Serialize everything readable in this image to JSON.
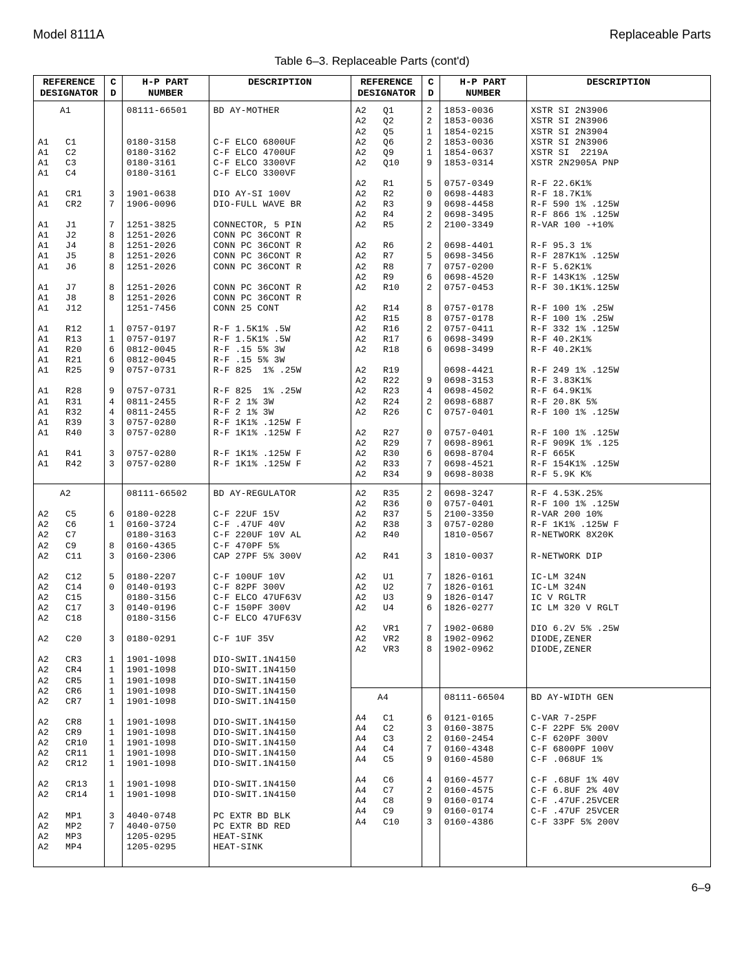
{
  "header": {
    "left": "Model 8111A",
    "right": "Replaceable Parts"
  },
  "caption": "Table 6–3. Replaceable Parts (cont'd)",
  "columns": [
    {
      "label_line1": "REFERENCE",
      "label_line2": "DESIGNATOR"
    },
    {
      "label_line1": "C",
      "label_line2": "D"
    },
    {
      "label_line1": "H-P PART",
      "label_line2": "NUMBER"
    },
    {
      "label_line1": "DESCRIPTION",
      "label_line2": ""
    },
    {
      "label_line1": "REFERENCE",
      "label_line2": "DESIGNATOR"
    },
    {
      "label_line1": "C",
      "label_line2": "D"
    },
    {
      "label_line1": "H-P PART",
      "label_line2": "NUMBER"
    },
    {
      "label_line1": "DESCRIPTION",
      "label_line2": ""
    }
  ],
  "cells": {
    "L_top_ref": "    A1\n\n\nA1   C1\nA1   C2\nA1   C3\nA1   C4\n\nA1   CR1\nA1   CR2\n\nA1   J1\nA1   J2\nA1   J4\nA1   J5\nA1   J6\n\nA1   J7\nA1   J8\nA1   J12\n\nA1   R12\nA1   R13\nA1   R20\nA1   R21\nA1   R25\n\nA1   R28\nA1   R31\nA1   R32\nA1   R39\nA1   R40\n\nA1   R41\nA1   R42",
    "L_top_cd": "\n\n\n\n\n\n\n\n3\n7\n\n7\n8\n8\n8\n8\n\n8\n8\n\n\n1\n1\n6\n6\n9\n\n9\n4\n4\n3\n3\n\n3\n3",
    "L_top_hp": "08111-66501\n\n\n0180-3158\n0180-3162\n0180-3161\n0180-3161\n\n1901-0638\n1906-0096\n\n1251-3825\n1251-2026\n1251-2026\n1251-2026\n1251-2026\n\n1251-2026\n1251-2026\n1251-7456\n\n0757-0197\n0757-0197\n0812-0045\n0812-0045\n0757-0731\n\n0757-0731\n0811-2455\n0811-2455\n0757-0280\n0757-0280\n\n0757-0280\n0757-0280",
    "L_top_desc": "BD AY-MOTHER\n\n\nC-F ELCO 6800UF\nC-F ELCO 4700UF\nC-F ELCO 3300VF\nC-F ELCO 3300VF\n\nDIO AY-SI 100V\nDIO-FULL WAVE BR\n\nCONNECTOR, 5 PIN\nCONN PC 36CONT R\nCONN PC 36CONT R\nCONN PC 36CONT R\nCONN PC 36CONT R\n\nCONN PC 36CONT R\nCONN PC 36CONT R\nCONN 25 CONT\n\nR-F 1.5K1% .5W\nR-F 1.5K1% .5W\nR-F .15 5% 3W\nR-F .15 5% 3W\nR-F 825  1% .25W\n\nR-F 825  1% .25W\nR-F 2 1% 3W\nR-F 2 1% 3W\nR-F 1K1% .125W F\nR-F 1K1% .125W F\n\nR-F 1K1% .125W F\nR-F 1K1% .125W F",
    "R_top_ref": "A2   Q1\nA2   Q2\nA2   Q5\nA2   Q6\nA2   Q9\nA2   Q10\n\nA2   R1\nA2   R2\nA2   R3\nA2   R4\nA2   R5\n\nA2   R6\nA2   R7\nA2   R8\nA2   R9\nA2   R10\n\nA2   R14\nA2   R15\nA2   R16\nA2   R17\nA2   R18\n\nA2   R19\nA2   R22\nA2   R23\nA2   R24\nA2   R26\n\nA2   R27\nA2   R29\nA2   R30\nA2   R33\nA2   R34",
    "R_top_cd": "2\n2\n1\n2\n1\n9\n\n5\n0\n9\n2\n2\n\n2\n5\n7\n6\n2\n\n8\n8\n2\n6\n6\n\n\n9\n4\n2\nC\n\n0\n7\n6\n7\n9",
    "R_top_hp": "1853-0036\n1853-0036\n1854-0215\n1853-0036\n1854-0637\n1853-0314\n\n0757-0349\n0698-4483\n0698-4458\n0698-3495\n2100-3349\n\n0698-4401\n0698-3456\n0757-0200\n0698-4520\n0757-0453\n\n0757-0178\n0757-0178\n0757-0411\n0698-3499\n0698-3499\n\n0698-4421\n0698-3153\n0698-4502\n0698-6887\n0757-0401\n\n0757-0401\n0698-8961\n0698-8704\n0698-4521\n0698-8038",
    "R_top_desc": "XSTR SI 2N3906\nXSTR SI 2N3906\nXSTR SI 2N3904\nXSTR SI 2N3906\nXSTR SI  2219A\nXSTR 2N2905A PNP\n\nR-F 22.6K1%\nR-F 18.7K1%\nR-F 590 1% .125W\nR-F 866 1% .125W\nR-VAR 100 -+10%\n\nR-F 95.3 1%\nR-F 287K1% .125W\nR-F 5.62K1%\nR-F 143K1% .125W\nR-F 30.1K1%.125W\n\nR-F 100 1% .25W\nR-F 100 1% .25W\nR-F 332 1% .125W\nR-F 40.2K1%\nR-F 40.2K1%\n\nR-F 249 1% .125W\nR-F 3.83K1%\nR-F 64.9K1%\nR-F 20.8K 5%\nR-F 100 1% .125W\n\nR-F 100 1% .125W\nR-F 909K 1% .125\nR-F 665K\nR-F 154K1% .125W\nR-F 5.9K K%",
    "L_mid_ref": "    A2\n\nA2   C5\nA2   C6\nA2   C7\nA2   C9\nA2   C11\n\nA2   C12\nA2   C14\nA2   C15\nA2   C17\nA2   C18\n\nA2   C20\n\nA2   CR3\nA2   CR4\nA2   CR5\nA2   CR6\nA2   CR7\n\nA2   CR8\nA2   CR9\nA2   CR10\nA2   CR11\nA2   CR12\n\nA2   CR13\nA2   CR14\n\nA2   MP1\nA2   MP2\nA2   MP3\nA2   MP4\n\n",
    "L_mid_cd": "\n\n6\n1\n\n8\n3\n\n5\n0\n\n3\n\n\n3\n\n1\n1\n1\n1\n1\n\n1\n1\n1\n1\n1\n\n1\n1\n\n3\n7\n\n\n\n",
    "L_mid_hp": "08111-66502\n\n0180-0228\n0160-3724\n0180-3163\n0160-4365\n0160-2306\n\n0180-2207\n0140-0193\n0180-3156\n0140-0196\n0180-3156\n\n0180-0291\n\n1901-1098\n1901-1098\n1901-1098\n1901-1098\n1901-1098\n\n1901-1098\n1901-1098\n1901-1098\n1901-1098\n1901-1098\n\n1901-1098\n1901-1098\n\n4040-0748\n4040-0750\n1205-0295\n1205-0295\n\n",
    "L_mid_desc": "BD AY-REGULATOR\n\nC-F 22UF 15V\nC-F .47UF 40V\nC-F 220UF 10V AL\nC-F 470PF 5%\nCAP 27PF 5% 300V\n\nC-F 100UF 10V\nC-F 82PF 300V\nC-F ELCO 47UF63V\nC-F 150PF 300V\nC-F ELCO 47UF63V\n\nC-F 1UF 35V\n\nDIO-SWIT.1N4150\nDIO-SWIT.1N4150\nDIO-SWIT.1N4150\nDIO-SWIT.1N4150\nDIO-SWIT.1N4150\n\nDIO-SWIT.1N4150\nDIO-SWIT.1N4150\nDIO-SWIT.1N4150\nDIO-SWIT.1N4150\nDIO-SWIT.1N4150\n\nDIO-SWIT.1N4150\nDIO-SWIT.1N4150\n\nPC EXTR BD BLK\nPC EXTR BD RED\nHEAT-SINK\nHEAT-SINK\n\n",
    "R_mid1_ref": "A2   R35\nA2   R36\nA2   R37\nA2   R38\nA2   R40\n\nA2   R41\n\nA2   U1\nA2   U2\nA2   U3\nA2   U4\n\nA2   VR1\nA2   VR2\nA2   VR3",
    "R_mid1_cd": "2\n0\n5\n3\n\n\n3\n\n7\n7\n9\n6\n\n7\n8\n8",
    "R_mid1_hp": "0698-3247\n0757-0401\n2100-3350\n0757-0280\n1810-0567\n\n1810-0037\n\n1826-0161\n1826-0161\n1826-0147\n1826-0277\n\n1902-0680\n1902-0962\n1902-0962",
    "R_mid1_desc": "R-F 4.53K.25%\nR-F 100 1% .125W\nR-VAR 200 10%\nR-F 1K1% .125W F\nR-NETWORK 8X20K\n\nR-NETWORK DIP\n\nIC-LM 324N\nIC-LM 324N\nIC V RGLTR\nIC LM 320 V RGLT\n\nDIO 6.2V 5% .25W\nDIODE,ZENER\nDIODE,ZENER",
    "R_mid2_ref": "    A4\n\nA4   C1\nA4   C2\nA4   C3\nA4   C4\nA4   C5\n\nA4   C6\nA4   C7\nA4   C8\nA4   C9\nA4   C10\n\n",
    "R_mid2_cd": "\n\n6\n3\n2\n7\n9\n\n4\n2\n9\n9\n3\n\n",
    "R_mid2_hp": "08111-66504\n\n0121-0165\n0160-3875\n0160-2454\n0160-4348\n0160-4580\n\n0160-4577\n0160-4575\n0160-0174\n0160-0174\n0160-4386\n\n",
    "R_mid2_desc": "BD AY-WIDTH GEN\n\nC-VAR 7-25PF\nC-F 22PF 5% 200V\nC-F 620PF 300V\nC-F 6800PF 100V\nC-F .068UF 1%\n\nC-F .68UF 1% 40V\nC-F 6.8UF 2% 40V\nC-F .47UF.25VCER\nC-F .47UF 25VCER\nC-F 33PF 5% 200V\n\n"
  },
  "page_number": "6–9"
}
